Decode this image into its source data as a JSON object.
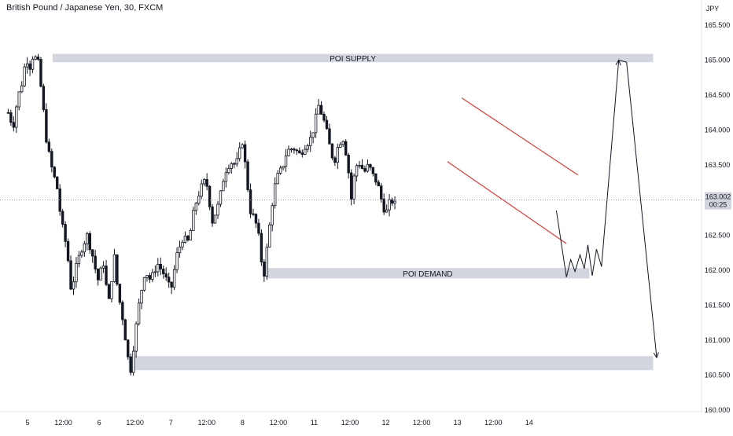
{
  "header": {
    "symbol_title": "British Pound / Japanese Yen, 30, FXCM"
  },
  "price_axis": {
    "unit_label": "JPY"
  },
  "chart_data": {
    "type": "candlestick",
    "title": "British Pound / Japanese Yen, 30, FXCM",
    "xlabel": "",
    "ylabel": "JPY",
    "ylim": [
      160.0,
      165.75
    ],
    "y_ticks": [
      "165.500",
      "165.000",
      "164.500",
      "164.000",
      "163.500",
      "163.000",
      "162.500",
      "162.000",
      "161.500",
      "161.000",
      "160.500",
      "160.000"
    ],
    "x_ticks": [
      "5",
      "12:00",
      "6",
      "12:00",
      "7",
      "12:00",
      "8",
      "12:00",
      "11",
      "12:00",
      "12",
      "12:00",
      "13",
      "12:00",
      "14"
    ],
    "last_price": {
      "value": "163.002",
      "countdown": "00:25"
    },
    "zones": [
      {
        "label": "POI SUPPLY",
        "top": 165.09,
        "bottom": 164.97
      },
      {
        "label": "POI DEMAND",
        "top": 162.03,
        "bottom": 161.88
      },
      {
        "label": "",
        "top": 160.77,
        "bottom": 160.57
      }
    ],
    "channel": {
      "upper": [
        [
          11.06,
          164.46
        ],
        [
          12.68,
          163.36
        ]
      ],
      "lower": [
        [
          10.86,
          163.55
        ],
        [
          12.52,
          162.38
        ]
      ]
    },
    "projection": [
      [
        12.38,
        162.85
      ],
      [
        12.52,
        161.9
      ],
      [
        12.58,
        162.15
      ],
      [
        12.64,
        161.98
      ],
      [
        12.71,
        162.22
      ],
      [
        12.77,
        162.02
      ],
      [
        12.82,
        162.36
      ],
      [
        12.88,
        161.92
      ],
      [
        12.94,
        162.3
      ],
      [
        13.01,
        162.05
      ],
      [
        13.25,
        165.0
      ],
      [
        13.36,
        164.97
      ],
      [
        13.78,
        160.75
      ]
    ],
    "candles_source": "path",
    "price_path": [
      [
        4.73,
        164.25
      ],
      [
        4.8,
        164.05
      ],
      [
        4.86,
        164.45
      ],
      [
        4.93,
        164.7
      ],
      [
        4.98,
        165.05
      ],
      [
        5.03,
        164.9
      ],
      [
        5.08,
        165.08
      ],
      [
        5.15,
        164.95
      ],
      [
        5.21,
        164.4
      ],
      [
        5.27,
        163.8
      ],
      [
        5.35,
        163.4
      ],
      [
        5.41,
        163.2
      ],
      [
        5.47,
        162.7
      ],
      [
        5.55,
        162.3
      ],
      [
        5.61,
        161.7
      ],
      [
        5.67,
        162.0
      ],
      [
        5.75,
        162.3
      ],
      [
        5.83,
        162.5
      ],
      [
        5.91,
        162.2
      ],
      [
        5.98,
        161.85
      ],
      [
        6.06,
        162.1
      ],
      [
        6.13,
        161.5
      ],
      [
        6.21,
        162.2
      ],
      [
        6.26,
        161.7
      ],
      [
        6.33,
        161.3
      ],
      [
        6.39,
        160.85
      ],
      [
        6.43,
        160.5
      ],
      [
        6.49,
        161.0
      ],
      [
        6.56,
        161.55
      ],
      [
        6.64,
        162.0
      ],
      [
        6.72,
        161.85
      ],
      [
        6.81,
        162.1
      ],
      [
        6.9,
        161.95
      ],
      [
        7.0,
        161.7
      ],
      [
        7.08,
        162.2
      ],
      [
        7.16,
        162.45
      ],
      [
        7.25,
        162.4
      ],
      [
        7.33,
        162.9
      ],
      [
        7.41,
        163.15
      ],
      [
        7.49,
        163.3
      ],
      [
        7.58,
        162.7
      ],
      [
        7.67,
        162.95
      ],
      [
        7.75,
        163.4
      ],
      [
        7.83,
        163.55
      ],
      [
        7.91,
        163.5
      ],
      [
        8.0,
        163.85
      ],
      [
        8.06,
        163.3
      ],
      [
        8.11,
        162.85
      ],
      [
        8.18,
        162.7
      ],
      [
        8.24,
        162.4
      ],
      [
        8.29,
        161.85
      ],
      [
        8.34,
        162.3
      ],
      [
        8.42,
        163.0
      ],
      [
        8.47,
        163.3
      ],
      [
        8.55,
        163.45
      ],
      [
        8.62,
        163.7
      ],
      [
        8.71,
        163.75
      ],
      [
        8.8,
        163.65
      ],
      [
        8.88,
        163.8
      ],
      [
        8.94,
        163.85
      ],
      [
        9.0,
        164.05
      ],
      [
        9.06,
        164.35
      ],
      [
        9.12,
        164.2
      ],
      [
        9.18,
        163.95
      ],
      [
        9.23,
        163.7
      ],
      [
        9.28,
        163.55
      ],
      [
        9.34,
        163.8
      ],
      [
        9.4,
        163.9
      ],
      [
        9.46,
        163.6
      ],
      [
        9.52,
        163.0
      ],
      [
        9.57,
        163.45
      ],
      [
        9.62,
        163.55
      ],
      [
        9.7,
        163.4
      ],
      [
        9.76,
        163.5
      ],
      [
        9.82,
        163.35
      ],
      [
        9.88,
        163.25
      ],
      [
        9.94,
        163.0
      ],
      [
        10.0,
        162.8
      ],
      [
        10.05,
        162.95
      ],
      [
        10.1,
        163.0
      ],
      [
        10.14,
        162.9
      ]
    ]
  }
}
